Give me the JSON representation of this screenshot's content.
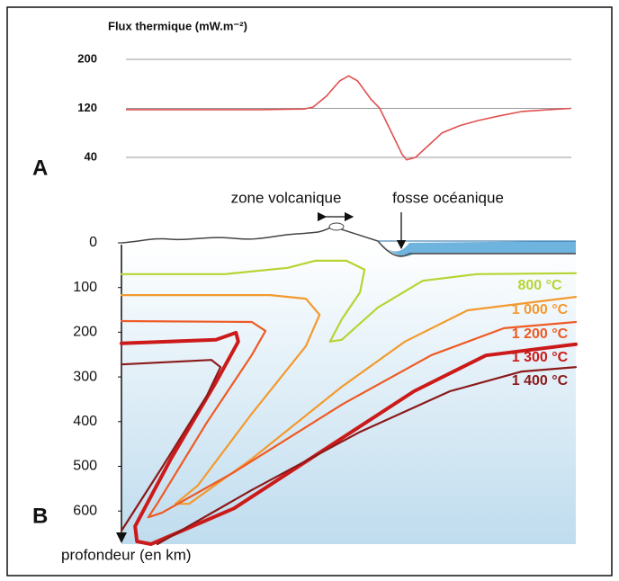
{
  "chart_data": [
    {
      "type": "line",
      "panel_label": "A",
      "title": "Flux thermique (mW.m⁻²)",
      "x": [
        0,
        10,
        20,
        30,
        40,
        42,
        45,
        48,
        50,
        52,
        55,
        57,
        60,
        62,
        63,
        65,
        68,
        71,
        75,
        79,
        84,
        89,
        95,
        100
      ],
      "values": [
        118,
        118,
        118,
        118,
        119,
        122,
        140,
        165,
        173,
        165,
        135,
        120,
        75,
        45,
        36,
        40,
        60,
        80,
        92,
        100,
        108,
        115,
        118,
        120
      ],
      "color": "#e05050",
      "xlim": [
        0,
        100
      ],
      "ylim": [
        20,
        220
      ],
      "yticks": [
        40,
        120,
        200
      ],
      "grid": true
    },
    {
      "type": "isotherms",
      "panel_label": "B",
      "y_label": "profondeur (en km)",
      "annotations": [
        "zone volcanique",
        "fosse océanique"
      ],
      "xlim": [
        0,
        100
      ],
      "ylim": [
        0,
        680
      ],
      "yticks": [
        0,
        100,
        200,
        300,
        400,
        500,
        600
      ],
      "series": [
        {
          "name": "800 °C",
          "color": "#b8d332",
          "x": [
            0,
            22.8,
            36.6,
            42.6,
            49.5,
            53.5,
            52.5,
            48.5,
            45.9,
            48.5,
            56.4,
            66.3,
            78.2,
            100
          ],
          "values": [
            70,
            70,
            56,
            40,
            40,
            60,
            111,
            171,
            221,
            217,
            145,
            85,
            70,
            68
          ]
        },
        {
          "name": "1 000 °C",
          "color": "#f39a2e",
          "x": [
            0,
            32.7,
            40.6,
            43.6,
            40.6,
            28.7,
            16.8,
            11.9,
            14.9,
            28.7,
            48.5,
            62.4,
            76.2,
            100
          ],
          "values": [
            117,
            117,
            125,
            161,
            231,
            382,
            543,
            584,
            584,
            483,
            322,
            221,
            151,
            121
          ]
        },
        {
          "name": "1 200 °C",
          "color": "#ee5a24",
          "x": [
            0,
            28.7,
            31.7,
            28.7,
            18.8,
            7.9,
            5.9,
            8.9,
            24.8,
            48.5,
            68.3,
            84.2,
            100
          ],
          "values": [
            175,
            177,
            197,
            251,
            402,
            583,
            614,
            604,
            513,
            362,
            251,
            191,
            177
          ]
        },
        {
          "name": "1 300 °C",
          "color": "#cc1a1a",
          "x": [
            0,
            20.8,
            25.2,
            25.7,
            20.8,
            10.9,
            3.0,
            3.4,
            6.5,
            24.8,
            44.6,
            64.4,
            80.2,
            100
          ],
          "values": [
            225,
            217,
            201,
            221,
            312,
            483,
            634,
            668,
            674,
            594,
            463,
            332,
            252,
            227
          ]
        },
        {
          "name": "1 400 °C",
          "color": "#8b1a1a",
          "x": [
            0,
            19.8,
            21.8,
            18.8,
            8.9,
            0,
            null,
            7.9,
            28.7,
            52.5,
            72.3,
            88.1,
            100
          ],
          "values": [
            272,
            262,
            278,
            342,
            503,
            644,
            null,
            674,
            553,
            423,
            332,
            288,
            278
          ]
        }
      ]
    }
  ]
}
